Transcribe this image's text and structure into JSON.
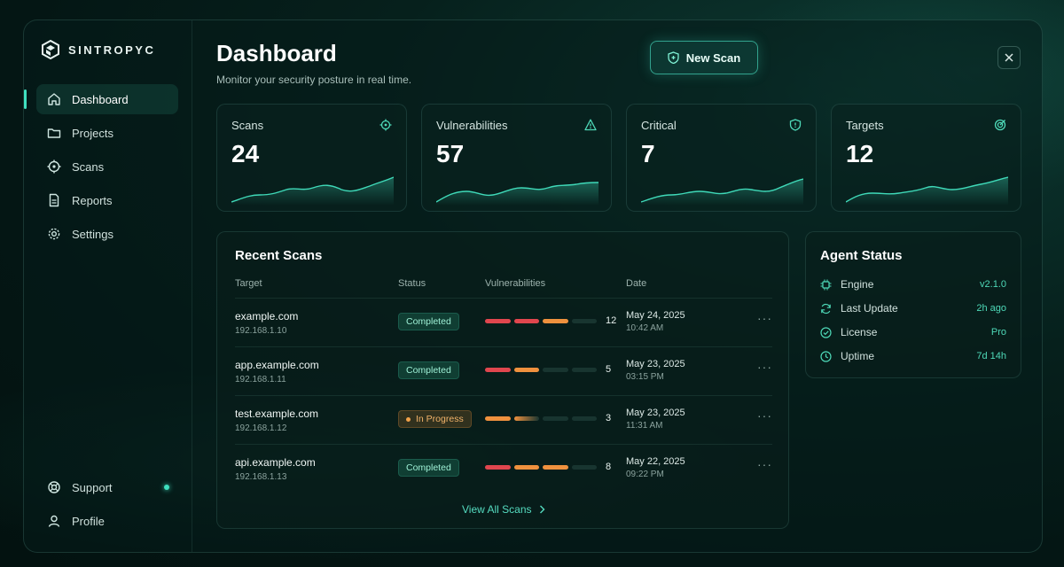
{
  "brand": {
    "name": "SINTROPYC"
  },
  "nav": {
    "items": [
      {
        "label": "Dashboard",
        "icon": "home-icon",
        "active": true
      },
      {
        "label": "Projects",
        "icon": "folder-icon",
        "active": false
      },
      {
        "label": "Scans",
        "icon": "crosshair-icon",
        "active": false
      },
      {
        "label": "Reports",
        "icon": "document-icon",
        "active": false
      },
      {
        "label": "Settings",
        "icon": "gear-icon",
        "active": false
      }
    ],
    "bottom": [
      {
        "label": "Support",
        "icon": "lifebuoy-icon"
      },
      {
        "label": "Profile",
        "icon": "user-icon"
      }
    ]
  },
  "header": {
    "title": "Dashboard",
    "subtitle": "Monitor your security posture in real time.",
    "new_scan_label": "New Scan"
  },
  "stats": [
    {
      "label": "Scans",
      "value": "24",
      "icon": "crosshair-icon"
    },
    {
      "label": "Vulnerabilities",
      "value": "57",
      "icon": "warning-icon"
    },
    {
      "label": "Critical",
      "value": "7",
      "icon": "shield-alert-icon"
    },
    {
      "label": "Targets",
      "value": "12",
      "icon": "target-icon"
    }
  ],
  "recent_scans": {
    "title": "Recent Scans",
    "columns": [
      "Target",
      "Status",
      "Vulnerabilities",
      "Date"
    ],
    "rows": [
      {
        "target": "example.com",
        "ip": "192.168.1.10",
        "status": "Completed",
        "vulns": "12",
        "date": "May 24, 2025",
        "time": "10:42 AM"
      },
      {
        "target": "app.example.com",
        "ip": "192.168.1.11",
        "status": "Completed",
        "vulns": "5",
        "date": "May 23, 2025",
        "time": "03:15 PM"
      },
      {
        "target": "test.example.com",
        "ip": "192.168.1.12",
        "status": "In Progress",
        "vulns": "3",
        "date": "May 23, 2025",
        "time": "11:31 AM"
      },
      {
        "target": "api.example.com",
        "ip": "192.168.1.13",
        "status": "Completed",
        "vulns": "8",
        "date": "May 22, 2025",
        "time": "09:22 PM"
      }
    ],
    "view_all": "View All Scans"
  },
  "agent_status": {
    "title": "Agent Status",
    "items": [
      {
        "label": "Engine",
        "value": "v2.1.0",
        "icon": "chip-icon"
      },
      {
        "label": "Last Update",
        "value": "2h ago",
        "icon": "refresh-icon"
      },
      {
        "label": "License",
        "value": "Pro",
        "icon": "check-circle-icon"
      },
      {
        "label": "Uptime",
        "value": "7d 14h",
        "icon": "clock-icon"
      }
    ]
  },
  "colors": {
    "accent": "#3fe0c0",
    "critical": "#e0464e",
    "warning": "#ef913e"
  }
}
